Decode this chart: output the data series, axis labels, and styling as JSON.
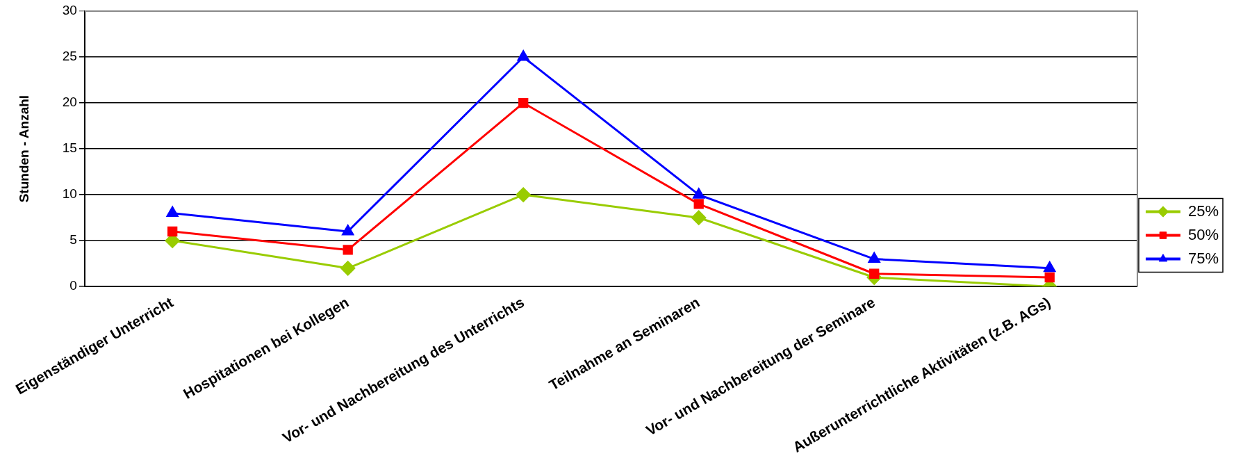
{
  "chart_data": {
    "type": "line",
    "ylabel": "Stunden - Anzahl",
    "categories": [
      "Eigenständiger Unterricht",
      "Hospitationen bei Kollegen",
      "Vor- und Nachbereitung des Unterrichts",
      "Teilnahme an Seminaren",
      "Vor- und Nachbereitung der Seminare",
      "Außerunterrichtliche Aktivitäten (z.B. AGs)"
    ],
    "series": [
      {
        "name": "25%",
        "color": "#99cc00",
        "marker": "diamond",
        "values": [
          5,
          2,
          10,
          7.5,
          1,
          0
        ]
      },
      {
        "name": "50%",
        "color": "#ff0000",
        "marker": "square",
        "values": [
          6,
          4,
          20,
          9,
          1.4,
          1
        ]
      },
      {
        "name": "75%",
        "color": "#0000ff",
        "marker": "triangle",
        "values": [
          8,
          6,
          25,
          10,
          3,
          2
        ]
      }
    ],
    "ylim": [
      0,
      30
    ],
    "yticks": [
      0,
      5,
      10,
      15,
      20,
      25,
      30
    ],
    "grid": "y",
    "legend": "right",
    "line_style": "solid"
  }
}
